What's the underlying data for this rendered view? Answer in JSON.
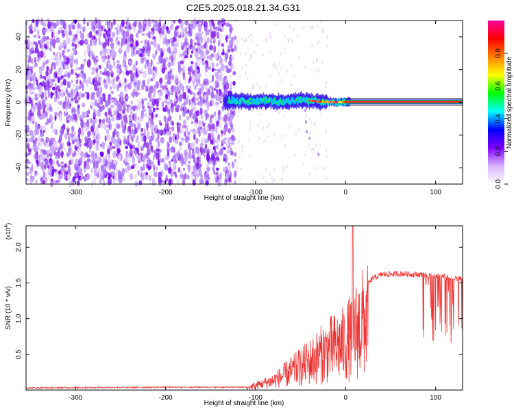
{
  "title": "C2E5.2025.018.21.34.G31",
  "chart_data": [
    {
      "type": "heatmap",
      "xlabel": "Height of straight line (km)",
      "ylabel": "Frequency (Hz)",
      "xlim": [
        -355,
        130
      ],
      "ylim": [
        -50,
        50
      ],
      "xticks": [
        -300,
        -200,
        -100,
        0,
        100
      ],
      "yticks": [
        -40,
        -20,
        0,
        20,
        40
      ],
      "xtick_labels": [
        "-300",
        "-200",
        "-100",
        "0",
        "100"
      ],
      "ytick_labels": [
        "-40",
        "-20",
        "0",
        "20",
        "40"
      ],
      "colorbar": {
        "label": "Normalized spectral amplitude",
        "range": [
          0,
          1
        ],
        "ticks": [
          0,
          0.2,
          0.4,
          0.6,
          0.8
        ],
        "tick_labels": [
          "0.0",
          "0.2",
          "0.4",
          "0.6",
          "0.8"
        ],
        "colors": [
          "#ffffff",
          "#d9b3ff",
          "#8000ff",
          "#0000ff",
          "#00ffff",
          "#00ff00",
          "#ffff00",
          "#ff8000",
          "#ff0000",
          "#ff00a0"
        ]
      },
      "signal_track": [
        {
          "x": -130,
          "y": 1.5
        },
        {
          "x": -110,
          "y": 0.5
        },
        {
          "x": -90,
          "y": 1
        },
        {
          "x": -70,
          "y": 0
        },
        {
          "x": -50,
          "y": 1.5
        },
        {
          "x": -30,
          "y": 0.5
        },
        {
          "x": -10,
          "y": 0
        },
        {
          "x": 0,
          "y": 0.3
        },
        {
          "x": 130,
          "y": 0.3
        }
      ],
      "noise_region_x": [
        -355,
        -130
      ]
    },
    {
      "type": "line",
      "xlabel": "Height of straight line (km)",
      "ylabel": "SNR (10 * v/v)",
      "yscale_label": "(x10",
      "yscale_exp": "4",
      "xlim": [
        -355,
        130
      ],
      "ylim": [
        0,
        2.3
      ],
      "xticks": [
        -300,
        -200,
        -100,
        0,
        100
      ],
      "yticks": [
        0.5,
        1.0,
        1.5,
        2.0
      ],
      "xtick_labels": [
        "-300",
        "-200",
        "-100",
        "0",
        "100"
      ],
      "ytick_labels": [
        "0.5",
        "1.0",
        "1.5",
        "2.0"
      ],
      "color": "#ee3333",
      "series_envelope": [
        {
          "x": -355,
          "y": 0.03
        },
        {
          "x": -200,
          "y": 0.04
        },
        {
          "x": -110,
          "y": 0.04
        },
        {
          "x": -100,
          "y": 0.1
        },
        {
          "x": -80,
          "y": 0.2
        },
        {
          "x": -60,
          "y": 0.4
        },
        {
          "x": -40,
          "y": 0.6
        },
        {
          "x": -20,
          "y": 0.85
        },
        {
          "x": 0,
          "y": 1.0
        },
        {
          "x": 10,
          "y": 1.25
        },
        {
          "x": 20,
          "y": 1.45
        },
        {
          "x": 30,
          "y": 1.6
        },
        {
          "x": 40,
          "y": 1.66
        },
        {
          "x": 60,
          "y": 1.67
        },
        {
          "x": 80,
          "y": 1.66
        },
        {
          "x": 100,
          "y": 1.65
        },
        {
          "x": 120,
          "y": 1.6
        },
        {
          "x": 130,
          "y": 1.6
        }
      ],
      "spike": {
        "x": 8,
        "y": 2.3
      }
    }
  ]
}
